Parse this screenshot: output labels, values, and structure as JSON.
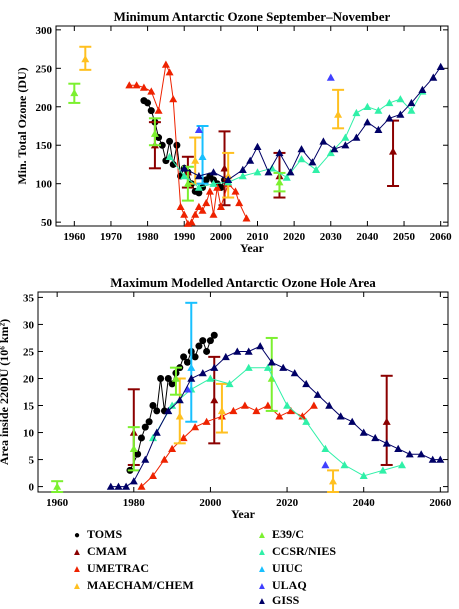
{
  "colors": {
    "TOMS": "#000000",
    "CMAM": "#8b0000",
    "UMETRAC": "#ee2200",
    "MAECHAM/CHEM": "#ffc020",
    "E39/C": "#7cf030",
    "CCSR/NIES": "#30f0a8",
    "UIUC": "#18c0ff",
    "ULAQ": "#4040ff",
    "GISS": "#000066"
  },
  "legend": {
    "items": [
      {
        "label": "TOMS",
        "marker": "circle"
      },
      {
        "label": "CMAM",
        "marker": "triangle"
      },
      {
        "label": "UMETRAC",
        "marker": "triangle"
      },
      {
        "label": "MAECHAM/CHEM",
        "marker": "triangle"
      },
      {
        "label": "E39/C",
        "marker": "triangle"
      },
      {
        "label": "CCSR/NIES",
        "marker": "triangle"
      },
      {
        "label": "UIUC",
        "marker": "triangle"
      },
      {
        "label": "ULAQ",
        "marker": "triangle"
      },
      {
        "label": "GISS",
        "marker": "triangle"
      }
    ]
  },
  "chart_data": [
    {
      "type": "scatter",
      "title": "Minimum Antarctic Ozone September–November",
      "xlabel": "Year",
      "ylabel": "Min. Total Ozone (DU)",
      "xlim": [
        1955,
        2062
      ],
      "ylim": [
        45,
        305
      ],
      "xticks": [
        1960,
        1970,
        1980,
        1990,
        2000,
        2010,
        2020,
        2030,
        2040,
        2050,
        2060
      ],
      "yticks": [
        50,
        100,
        150,
        200,
        250,
        300
      ],
      "series": [
        {
          "name": "TOMS",
          "marker": "circle",
          "x": [
            1979,
            1980,
            1981,
            1982,
            1983,
            1984,
            1985,
            1986,
            1987,
            1988,
            1989,
            1990,
            1991,
            1992,
            1993,
            1994,
            1995,
            1996,
            1997,
            1998,
            1999,
            2000,
            2001
          ],
          "y": [
            208,
            205,
            195,
            180,
            160,
            150,
            130,
            155,
            125,
            150,
            110,
            120,
            115,
            100,
            90,
            88,
            95,
            105,
            110,
            105,
            100,
            95,
            105
          ]
        },
        {
          "name": "CMAM",
          "marker": "triangle",
          "x": [
            1982,
            1991,
            2001,
            2016,
            2047
          ],
          "y": [
            150,
            115,
            120,
            110,
            142
          ],
          "err": [
            [
              120,
              180
            ],
            [
              95,
              135
            ],
            [
              72,
              168
            ],
            [
              82,
              140
            ],
            [
              97,
              182
            ]
          ]
        },
        {
          "name": "UMETRAC",
          "marker": "triangle",
          "x": [
            1975,
            1977,
            1979,
            1981,
            1983,
            1985,
            1986,
            1987,
            1989,
            1990,
            1991,
            1992,
            1993,
            1994,
            1995,
            1996,
            1997,
            1998,
            1999,
            2000,
            2002,
            2004,
            2005,
            2007
          ],
          "y": [
            228,
            228,
            225,
            220,
            195,
            255,
            245,
            210,
            70,
            60,
            48,
            50,
            60,
            70,
            65,
            75,
            90,
            60,
            95,
            70,
            100,
            90,
            75,
            55
          ]
        },
        {
          "name": "MAECHAM/CHEM",
          "marker": "triangle",
          "x": [
            1963,
            1993,
            2002,
            2032
          ],
          "y": [
            262,
            130,
            110,
            190
          ],
          "err": [
            [
              248,
              278
            ],
            [
              100,
              160
            ],
            [
              82,
              140
            ],
            [
              172,
              222
            ]
          ]
        },
        {
          "name": "E39/C",
          "marker": "triangle",
          "x": [
            1960,
            1982,
            1991,
            2016
          ],
          "y": [
            218,
            165,
            100,
            102
          ],
          "err": [
            [
              205,
              230
            ],
            [
              150,
              185
            ],
            [
              78,
              122
            ],
            [
              90,
              114
            ]
          ]
        },
        {
          "name": "CCSR/NIES",
          "marker": "triangle",
          "x": [
            1986,
            1990,
            1994,
            1998,
            2002,
            2006,
            2010,
            2014,
            2018,
            2022,
            2026,
            2030,
            2034,
            2037,
            2040,
            2043,
            2046,
            2049,
            2052,
            2055
          ],
          "y": [
            135,
            110,
            95,
            100,
            102,
            110,
            115,
            120,
            108,
            132,
            118,
            140,
            160,
            192,
            200,
            195,
            205,
            210,
            195,
            220
          ]
        },
        {
          "name": "UIUC",
          "marker": "triangle",
          "x": [
            1995
          ],
          "y": [
            135
          ],
          "err": [
            [
              100,
              175
            ]
          ]
        },
        {
          "name": "ULAQ",
          "marker": "triangle",
          "x": [
            1994,
            2030
          ],
          "y": [
            170,
            238
          ]
        },
        {
          "name": "GISS",
          "marker": "triangle",
          "x": [
            1990,
            1994,
            1998,
            2002,
            2006,
            2008,
            2010,
            2013,
            2016,
            2019,
            2022,
            2025,
            2028,
            2031,
            2034,
            2037,
            2040,
            2043,
            2046,
            2049,
            2052,
            2055,
            2058,
            2060
          ],
          "y": [
            120,
            110,
            115,
            105,
            118,
            130,
            148,
            115,
            140,
            115,
            145,
            128,
            155,
            145,
            150,
            160,
            180,
            170,
            185,
            190,
            205,
            222,
            238,
            252
          ]
        }
      ]
    },
    {
      "type": "scatter",
      "title": "Maximum Modelled Antarctic Ozone Hole Area",
      "xlabel": "Year",
      "ylabel": "Area inside 220DU (10⁶ km²)",
      "xlim": [
        1955,
        2062
      ],
      "ylim": [
        -1,
        36
      ],
      "xticks": [
        1960,
        1980,
        2000,
        2020,
        2040,
        2060
      ],
      "yticks": [
        0,
        5,
        10,
        15,
        20,
        25,
        30,
        35
      ],
      "series": [
        {
          "name": "TOMS",
          "marker": "circle",
          "x": [
            1979,
            1981,
            1982,
            1983,
            1984,
            1985,
            1986,
            1987,
            1988,
            1989,
            1990,
            1991,
            1992,
            1993,
            1994,
            1995,
            1996,
            1997,
            1998,
            1999,
            2000,
            2001
          ],
          "y": [
            3,
            6,
            9,
            11,
            12,
            15,
            14,
            20,
            14,
            20,
            19,
            21,
            22,
            24,
            23,
            25,
            24,
            26,
            27,
            25,
            27,
            28
          ]
        },
        {
          "name": "CMAM",
          "marker": "triangle",
          "x": [
            1980,
            2001,
            2046
          ],
          "y": [
            10,
            16,
            12
          ],
          "err": [
            [
              4,
              18
            ],
            [
              8,
              24
            ],
            [
              4,
              20.5
            ]
          ]
        },
        {
          "name": "UMETRAC",
          "marker": "triangle",
          "x": [
            1982,
            1985,
            1988,
            1990,
            1993,
            1996,
            1999,
            2003,
            2006,
            2009,
            2012,
            2015,
            2018,
            2021,
            2024,
            2027
          ],
          "y": [
            0,
            2,
            5,
            7,
            9,
            11,
            12,
            13,
            14,
            15,
            14,
            15,
            13,
            14,
            13,
            15
          ]
        },
        {
          "name": "MAECHAM/CHEM",
          "marker": "triangle",
          "x": [
            1992,
            2003,
            2032
          ],
          "y": [
            13,
            14,
            1
          ],
          "err": [
            [
              8,
              20
            ],
            [
              10,
              19
            ],
            [
              -1,
              3
            ]
          ]
        },
        {
          "name": "E39/C",
          "marker": "triangle",
          "x": [
            1960,
            1980,
            1991,
            2016
          ],
          "y": [
            0,
            7,
            20,
            20
          ],
          "err": [
            [
              -1,
              1
            ],
            [
              3,
              11
            ],
            [
              17,
              22
            ],
            [
              14,
              27.5
            ]
          ]
        },
        {
          "name": "CCSR/NIES",
          "marker": "triangle",
          "x": [
            1985,
            1990,
            1995,
            2000,
            2005,
            2010,
            2015,
            2020,
            2025,
            2030,
            2035,
            2040,
            2045,
            2050
          ],
          "y": [
            9,
            15,
            18,
            20,
            19,
            22,
            22,
            15,
            12,
            7,
            4,
            2,
            3,
            4
          ]
        },
        {
          "name": "UIUC",
          "marker": "triangle",
          "x": [
            1995
          ],
          "y": [
            22
          ],
          "err": [
            [
              12,
              34
            ]
          ]
        },
        {
          "name": "ULAQ",
          "marker": "triangle",
          "x": [
            1994,
            2030
          ],
          "y": [
            18,
            4
          ]
        },
        {
          "name": "GISS",
          "marker": "triangle",
          "x": [
            1974,
            1976,
            1978,
            1980,
            1983,
            1986,
            1989,
            1992,
            1995,
            1998,
            2001,
            2004,
            2007,
            2010,
            2013,
            2016,
            2019,
            2022,
            2025,
            2028,
            2031,
            2034,
            2037,
            2040,
            2043,
            2046,
            2049,
            2052,
            2055,
            2058,
            2060
          ],
          "y": [
            0,
            0,
            0,
            1,
            5,
            10,
            14,
            16,
            20,
            21,
            22,
            24,
            25,
            25,
            26,
            23,
            22,
            21,
            19,
            17,
            15,
            13,
            12,
            10,
            9,
            8,
            7,
            6,
            6,
            5,
            5
          ]
        }
      ]
    }
  ]
}
